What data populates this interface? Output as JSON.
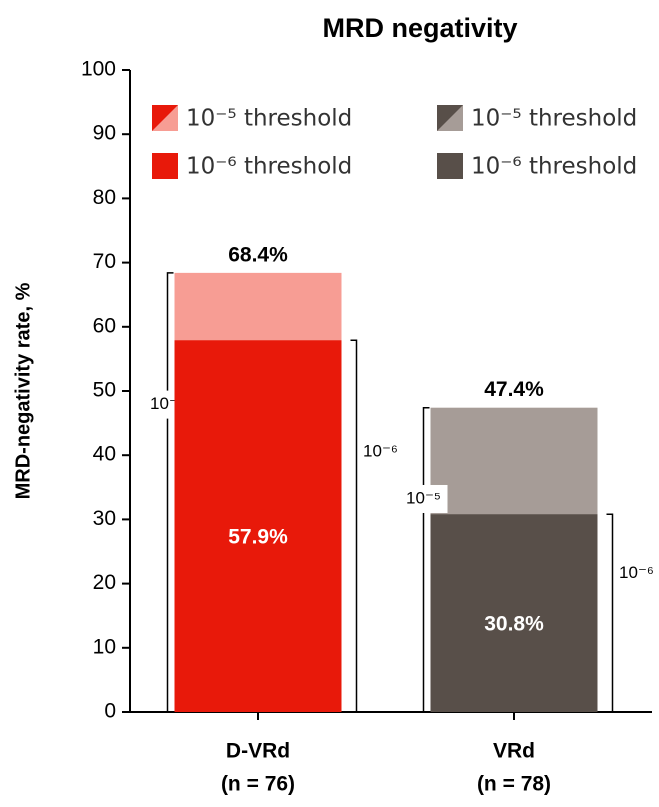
{
  "chart_data": {
    "type": "bar",
    "title": "MRD negativity",
    "y_label": "MRD-negativity rate, %",
    "categories": [
      "D-VRd",
      "VRd"
    ],
    "subcategories": [
      "(n = 76)",
      "(n = 78)"
    ],
    "ylim": [
      0,
      100
    ],
    "yticks": [
      0,
      10,
      20,
      30,
      40,
      50,
      60,
      70,
      80,
      90,
      100
    ],
    "series": [
      {
        "name": "10⁻⁵ threshold",
        "colors": [
          "#f79d94",
          "#a69c97"
        ],
        "values": [
          68.4,
          47.4
        ],
        "value_labels": [
          "68.4%",
          "47.4%"
        ],
        "bracket_label": "10⁻⁵"
      },
      {
        "name": "10⁻⁶ threshold",
        "colors": [
          "#e8190a",
          "#584f49"
        ],
        "values": [
          57.9,
          30.8
        ],
        "value_labels": [
          "57.9%",
          "30.8%"
        ],
        "bracket_label": "10⁻⁶"
      }
    ]
  }
}
